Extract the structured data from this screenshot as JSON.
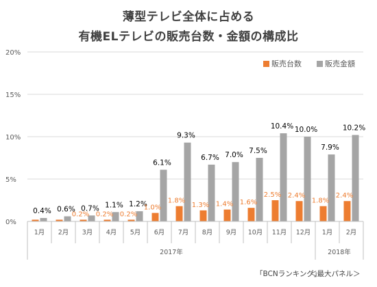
{
  "header": {
    "title_line1": "薄型テレビ全体に占める",
    "title_line2": "有機ELテレビの販売台数・金額の構成比"
  },
  "legend": {
    "units_label": "販売台数",
    "amount_label": "販売金額"
  },
  "footer": {
    "source": "「BCNランキング」",
    "note": "＜最大パネル＞"
  },
  "colors": {
    "units": "#ED7D31",
    "amount": "#A5A5A5"
  },
  "chart_data": {
    "type": "bar",
    "title": "薄型テレビ全体に占める 有機ELテレビの販売台数・金額の構成比",
    "categories": [
      "1月",
      "2月",
      "3月",
      "4月",
      "5月",
      "6月",
      "7月",
      "8月",
      "9月",
      "10月",
      "11月",
      "12月",
      "1月",
      "2月"
    ],
    "category_groups": [
      {
        "label": "2017年",
        "count": 12
      },
      {
        "label": "2018年",
        "count": 2
      }
    ],
    "series": [
      {
        "name": "販売台数",
        "values": [
          0.2,
          0.2,
          0.2,
          0.2,
          0.2,
          1.0,
          1.8,
          1.3,
          1.4,
          1.6,
          2.5,
          2.4,
          1.8,
          2.4
        ]
      },
      {
        "name": "販売金額",
        "values": [
          0.4,
          0.6,
          0.7,
          1.1,
          1.2,
          6.1,
          9.3,
          6.7,
          7.0,
          7.5,
          10.4,
          10.0,
          7.9,
          10.2
        ]
      }
    ],
    "data_labels": {
      "販売台数": [
        "",
        "",
        "0.2%",
        "0.2%",
        "0.2%",
        "1.0%",
        "1.8%",
        "1.3%",
        "1.4%",
        "1.6%",
        "2.5%",
        "2.4%",
        "1.8%",
        "2.4%"
      ],
      "販売金額": [
        "0.4%",
        "0.6%",
        "0.7%",
        "1.1%",
        "1.2%",
        "6.1%",
        "9.3%",
        "6.7%",
        "7.0%",
        "7.5%",
        "10.4%",
        "10.0%",
        "7.9%",
        "10.2%"
      ]
    },
    "y_ticks": [
      "0%",
      "5%",
      "10%",
      "15%",
      "20%"
    ],
    "ylim": [
      0,
      20
    ],
    "grid": true,
    "legend_position": "top-right"
  }
}
